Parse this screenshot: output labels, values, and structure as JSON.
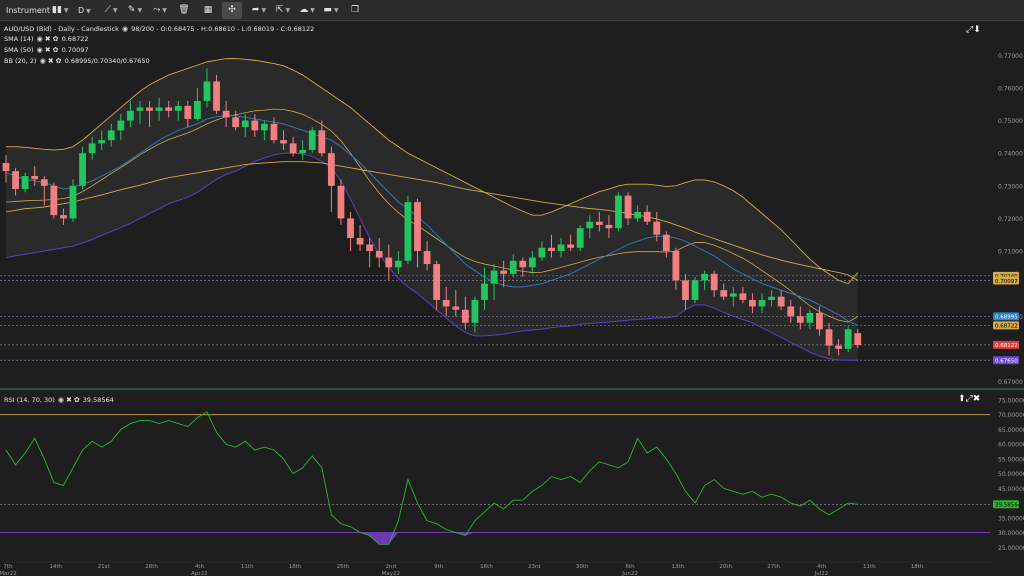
{
  "toolbar": {
    "instrument_label": "Instrument",
    "timeframe_label": "D",
    "icons": [
      "candles-icon",
      "crosshair-icon",
      "draw-line-icon",
      "pencil-icon",
      "trend-icon",
      "delete-icon",
      "layout-icon",
      "fullscreen-icon",
      "share-icon",
      "theme-icon",
      "flag-icon",
      "screenshot-icon"
    ]
  },
  "main_legend": {
    "title": "AUD/USD (Bid) - Daily - Candlestick",
    "ohlc": "98/200 - O:0.68475 - H:0.68610 - L:0.68019 - C:0.68122",
    "sma14": "SMA (14)",
    "sma14_value": "0.68722",
    "sma50": "SMA (50)",
    "sma50_value": "0.70097",
    "bb": "BB (20, 2)",
    "bb_value": "0.68995/0.70340/0.67650"
  },
  "rsi_legend": {
    "title": "RSI (14, 70, 30)",
    "value": "39.58564"
  },
  "colors": {
    "bg": "#1e1e1e",
    "up": "#22c55e",
    "down": "#f08080",
    "sma14": "#2e7fc7",
    "sma50": "#d4a94a",
    "bb_outer": "#d4a94a",
    "bb_lower": "#5b3fc9",
    "rsi": "#2db52d",
    "rsi_level": "#d4a94a",
    "rsi_fill": "#7b3fd1"
  },
  "chart_data": {
    "type": "candlestick",
    "title": "AUD/USD (Bid) - Daily - Candlestick",
    "price_ylim": [
      0.668,
      0.779
    ],
    "price_ticks": [
      "0.77000",
      "0.76000",
      "0.75000",
      "0.74000",
      "0.73000",
      "0.72000",
      "0.71000",
      "0.69000",
      "0.67000"
    ],
    "price_tick_values": [
      0.77,
      0.76,
      0.75,
      0.74,
      0.73,
      0.72,
      0.71,
      0.69,
      0.67
    ],
    "x_ticks": [
      {
        "label": "7th",
        "sub": "Mar22",
        "i": 0
      },
      {
        "label": "14th",
        "sub": "",
        "i": 5
      },
      {
        "label": "21st",
        "sub": "",
        "i": 10
      },
      {
        "label": "28th",
        "sub": "",
        "i": 15
      },
      {
        "label": "4th",
        "sub": "Apr22",
        "i": 20
      },
      {
        "label": "11th",
        "sub": "",
        "i": 25
      },
      {
        "label": "18th",
        "sub": "",
        "i": 30
      },
      {
        "label": "25th",
        "sub": "",
        "i": 35
      },
      {
        "label": "2nd",
        "sub": "May22",
        "i": 40
      },
      {
        "label": "9th",
        "sub": "",
        "i": 45
      },
      {
        "label": "16th",
        "sub": "",
        "i": 50
      },
      {
        "label": "23rd",
        "sub": "",
        "i": 55
      },
      {
        "label": "30th",
        "sub": "",
        "i": 60
      },
      {
        "label": "6th",
        "sub": "Jun22",
        "i": 65
      },
      {
        "label": "13th",
        "sub": "",
        "i": 70
      },
      {
        "label": "20th",
        "sub": "",
        "i": 75
      },
      {
        "label": "27th",
        "sub": "",
        "i": 80
      },
      {
        "label": "4th",
        "sub": "Jul22",
        "i": 85
      },
      {
        "label": "11th",
        "sub": "",
        "i": 90
      },
      {
        "label": "18th",
        "sub": "",
        "i": 95
      }
    ],
    "candles": [
      [
        0.737,
        0.7395,
        0.731,
        0.7345
      ],
      [
        0.7345,
        0.7355,
        0.727,
        0.729
      ],
      [
        0.729,
        0.734,
        0.728,
        0.733
      ],
      [
        0.733,
        0.736,
        0.73,
        0.732
      ],
      [
        0.732,
        0.733,
        0.724,
        0.73
      ],
      [
        0.73,
        0.731,
        0.72,
        0.721
      ],
      [
        0.721,
        0.723,
        0.718,
        0.72
      ],
      [
        0.72,
        0.732,
        0.719,
        0.73
      ],
      [
        0.73,
        0.742,
        0.729,
        0.74
      ],
      [
        0.74,
        0.745,
        0.738,
        0.743
      ],
      [
        0.743,
        0.747,
        0.741,
        0.744
      ],
      [
        0.744,
        0.749,
        0.742,
        0.747
      ],
      [
        0.747,
        0.752,
        0.744,
        0.75
      ],
      [
        0.75,
        0.756,
        0.748,
        0.753
      ],
      [
        0.753,
        0.756,
        0.749,
        0.754
      ],
      [
        0.754,
        0.756,
        0.748,
        0.753
      ],
      [
        0.753,
        0.757,
        0.75,
        0.754
      ],
      [
        0.754,
        0.756,
        0.751,
        0.753
      ],
      [
        0.753,
        0.756,
        0.75,
        0.7545
      ],
      [
        0.7545,
        0.756,
        0.748,
        0.7505
      ],
      [
        0.7505,
        0.76,
        0.75,
        0.756
      ],
      [
        0.756,
        0.766,
        0.754,
        0.762
      ],
      [
        0.762,
        0.764,
        0.752,
        0.753
      ],
      [
        0.753,
        0.756,
        0.748,
        0.751
      ],
      [
        0.751,
        0.753,
        0.747,
        0.748
      ],
      [
        0.748,
        0.752,
        0.745,
        0.75
      ],
      [
        0.75,
        0.752,
        0.745,
        0.747
      ],
      [
        0.747,
        0.75,
        0.744,
        0.749
      ],
      [
        0.749,
        0.751,
        0.743,
        0.744
      ],
      [
        0.744,
        0.747,
        0.741,
        0.743
      ],
      [
        0.743,
        0.745,
        0.739,
        0.74
      ],
      [
        0.74,
        0.744,
        0.738,
        0.741
      ],
      [
        0.741,
        0.748,
        0.74,
        0.747
      ],
      [
        0.747,
        0.75,
        0.739,
        0.74
      ],
      [
        0.74,
        0.742,
        0.722,
        0.73
      ],
      [
        0.73,
        0.732,
        0.718,
        0.72
      ],
      [
        0.72,
        0.722,
        0.71,
        0.714
      ],
      [
        0.714,
        0.718,
        0.71,
        0.712
      ],
      [
        0.712,
        0.714,
        0.705,
        0.71
      ],
      [
        0.71,
        0.714,
        0.705,
        0.708
      ],
      [
        0.708,
        0.712,
        0.701,
        0.705
      ],
      [
        0.705,
        0.71,
        0.703,
        0.707
      ],
      [
        0.707,
        0.727,
        0.706,
        0.725
      ],
      [
        0.725,
        0.726,
        0.705,
        0.71
      ],
      [
        0.71,
        0.713,
        0.704,
        0.706
      ],
      [
        0.706,
        0.707,
        0.692,
        0.695
      ],
      [
        0.695,
        0.699,
        0.69,
        0.693
      ],
      [
        0.693,
        0.698,
        0.69,
        0.692
      ],
      [
        0.692,
        0.696,
        0.686,
        0.688
      ],
      [
        0.688,
        0.696,
        0.685,
        0.695
      ],
      [
        0.695,
        0.705,
        0.692,
        0.7
      ],
      [
        0.7,
        0.706,
        0.695,
        0.704
      ],
      [
        0.704,
        0.707,
        0.699,
        0.703
      ],
      [
        0.703,
        0.709,
        0.702,
        0.707
      ],
      [
        0.707,
        0.708,
        0.702,
        0.705
      ],
      [
        0.705,
        0.71,
        0.703,
        0.708
      ],
      [
        0.708,
        0.713,
        0.707,
        0.711
      ],
      [
        0.711,
        0.715,
        0.708,
        0.71
      ],
      [
        0.71,
        0.714,
        0.708,
        0.712
      ],
      [
        0.712,
        0.715,
        0.71,
        0.711
      ],
      [
        0.711,
        0.718,
        0.71,
        0.717
      ],
      [
        0.717,
        0.721,
        0.714,
        0.719
      ],
      [
        0.719,
        0.722,
        0.716,
        0.718
      ],
      [
        0.718,
        0.721,
        0.714,
        0.717
      ],
      [
        0.717,
        0.728,
        0.716,
        0.727
      ],
      [
        0.727,
        0.728,
        0.718,
        0.72
      ],
      [
        0.72,
        0.724,
        0.719,
        0.722
      ],
      [
        0.722,
        0.724,
        0.718,
        0.719
      ],
      [
        0.719,
        0.722,
        0.713,
        0.715
      ],
      [
        0.715,
        0.716,
        0.708,
        0.71
      ],
      [
        0.71,
        0.711,
        0.698,
        0.701
      ],
      [
        0.701,
        0.703,
        0.692,
        0.695
      ],
      [
        0.695,
        0.702,
        0.694,
        0.701
      ],
      [
        0.701,
        0.704,
        0.698,
        0.703
      ],
      [
        0.703,
        0.704,
        0.696,
        0.698
      ],
      [
        0.698,
        0.7,
        0.695,
        0.696
      ],
      [
        0.696,
        0.699,
        0.693,
        0.697
      ],
      [
        0.697,
        0.699,
        0.694,
        0.695
      ],
      [
        0.695,
        0.697,
        0.691,
        0.693
      ],
      [
        0.693,
        0.697,
        0.691,
        0.695
      ],
      [
        0.695,
        0.698,
        0.693,
        0.696
      ],
      [
        0.696,
        0.698,
        0.692,
        0.693
      ],
      [
        0.693,
        0.695,
        0.688,
        0.69
      ],
      [
        0.69,
        0.693,
        0.686,
        0.688
      ],
      [
        0.688,
        0.692,
        0.686,
        0.691
      ],
      [
        0.691,
        0.693,
        0.684,
        0.686
      ],
      [
        0.686,
        0.688,
        0.678,
        0.681
      ],
      [
        0.681,
        0.683,
        0.678,
        0.68
      ],
      [
        0.68,
        0.687,
        0.679,
        0.686
      ],
      [
        0.6848,
        0.6861,
        0.6802,
        0.6812
      ]
    ],
    "sma14": [
      0.734,
      0.733,
      0.732,
      0.7315,
      0.731,
      0.73,
      0.729,
      0.7295,
      0.7305,
      0.7315,
      0.733,
      0.7345,
      0.736,
      0.738,
      0.74,
      0.742,
      0.744,
      0.7455,
      0.747,
      0.748,
      0.749,
      0.7505,
      0.7512,
      0.7515,
      0.7515,
      0.751,
      0.7505,
      0.75,
      0.7495,
      0.749,
      0.748,
      0.747,
      0.746,
      0.745,
      0.744,
      0.742,
      0.7395,
      0.737,
      0.734,
      0.731,
      0.728,
      0.725,
      0.723,
      0.7205,
      0.718,
      0.715,
      0.712,
      0.709,
      0.706,
      0.704,
      0.702,
      0.7005,
      0.6995,
      0.699,
      0.699,
      0.6995,
      0.7,
      0.701,
      0.702,
      0.703,
      0.7045,
      0.706,
      0.7075,
      0.709,
      0.7105,
      0.712,
      0.713,
      0.714,
      0.7145,
      0.7145,
      0.714,
      0.713,
      0.7115,
      0.71,
      0.7085,
      0.7065,
      0.7045,
      0.703,
      0.7015,
      0.7,
      0.699,
      0.698,
      0.697,
      0.696,
      0.695,
      0.6935,
      0.692,
      0.6905,
      0.6885,
      0.6872
    ],
    "sma50": [
      0.722,
      0.7225,
      0.723,
      0.7232,
      0.7235,
      0.724,
      0.7245,
      0.725,
      0.7258,
      0.7265,
      0.7272,
      0.728,
      0.7288,
      0.7295,
      0.7302,
      0.731,
      0.7318,
      0.7325,
      0.733,
      0.7335,
      0.734,
      0.7345,
      0.735,
      0.7355,
      0.736,
      0.7365,
      0.7368,
      0.737,
      0.7372,
      0.7374,
      0.7374,
      0.7374,
      0.7372,
      0.737,
      0.7365,
      0.736,
      0.7355,
      0.735,
      0.7345,
      0.734,
      0.7335,
      0.733,
      0.7325,
      0.732,
      0.7315,
      0.731,
      0.7303,
      0.7296,
      0.729,
      0.7285,
      0.728,
      0.7275,
      0.727,
      0.7265,
      0.726,
      0.7255,
      0.725,
      0.7246,
      0.7242,
      0.7238,
      0.7234,
      0.723,
      0.7228,
      0.7224,
      0.722,
      0.7215,
      0.721,
      0.7205,
      0.7198,
      0.719,
      0.718,
      0.717,
      0.7158,
      0.7148,
      0.7138,
      0.7128,
      0.7118,
      0.7108,
      0.7098,
      0.7088,
      0.708,
      0.7072,
      0.7065,
      0.7058,
      0.7052,
      0.7046,
      0.704,
      0.7034,
      0.7027,
      0.701
    ],
    "bb_upper": [
      0.742,
      0.742,
      0.7418,
      0.7415,
      0.7412,
      0.741,
      0.7412,
      0.742,
      0.744,
      0.7465,
      0.749,
      0.7515,
      0.754,
      0.7565,
      0.759,
      0.761,
      0.7625,
      0.764,
      0.765,
      0.766,
      0.767,
      0.768,
      0.7685,
      0.769,
      0.769,
      0.7688,
      0.7685,
      0.768,
      0.7675,
      0.7668,
      0.7655,
      0.764,
      0.762,
      0.76,
      0.758,
      0.756,
      0.754,
      0.7515,
      0.749,
      0.7465,
      0.744,
      0.742,
      0.74,
      0.7385,
      0.737,
      0.7355,
      0.734,
      0.7325,
      0.731,
      0.7295,
      0.728,
      0.7265,
      0.725,
      0.7235,
      0.7222,
      0.721,
      0.721,
      0.722,
      0.7232,
      0.7245,
      0.7258,
      0.727,
      0.7282,
      0.729,
      0.73,
      0.7305,
      0.7305,
      0.7305,
      0.7302,
      0.7298,
      0.73,
      0.731,
      0.7318,
      0.7318,
      0.7312,
      0.73,
      0.7285,
      0.7265,
      0.724,
      0.7215,
      0.719,
      0.7165,
      0.7135,
      0.7105,
      0.7075,
      0.705,
      0.703,
      0.701,
      0.7,
      0.7034
    ],
    "bb_lower": [
      0.708,
      0.7085,
      0.709,
      0.7095,
      0.71,
      0.7105,
      0.711,
      0.7115,
      0.7125,
      0.7135,
      0.7148,
      0.716,
      0.7172,
      0.7185,
      0.72,
      0.7215,
      0.723,
      0.7245,
      0.7255,
      0.7265,
      0.728,
      0.73,
      0.732,
      0.7335,
      0.7345,
      0.736,
      0.7375,
      0.7385,
      0.7395,
      0.74,
      0.74,
      0.7398,
      0.739,
      0.7375,
      0.7355,
      0.7315,
      0.726,
      0.72,
      0.714,
      0.709,
      0.705,
      0.7015,
      0.699,
      0.697,
      0.6945,
      0.692,
      0.6895,
      0.687,
      0.685,
      0.684,
      0.684,
      0.6842,
      0.6845,
      0.685,
      0.6855,
      0.6858,
      0.686,
      0.6865,
      0.6868,
      0.687,
      0.6875,
      0.6878,
      0.688,
      0.6882,
      0.6885,
      0.6888,
      0.689,
      0.6892,
      0.6895,
      0.6895,
      0.69,
      0.692,
      0.6935,
      0.6935,
      0.6925,
      0.6912,
      0.69,
      0.689,
      0.688,
      0.6865,
      0.685,
      0.6835,
      0.682,
      0.6805,
      0.679,
      0.6778,
      0.677,
      0.6766,
      0.6765,
      0.6765
    ],
    "bb_middle": [
      0.725,
      0.7252,
      0.7254,
      0.7255,
      0.7256,
      0.7258,
      0.7261,
      0.7268,
      0.7282,
      0.73,
      0.7319,
      0.7338,
      0.7356,
      0.7375,
      0.7395,
      0.7412,
      0.7428,
      0.7442,
      0.7452,
      0.7462,
      0.7475,
      0.749,
      0.7502,
      0.7512,
      0.7518,
      0.7524,
      0.753,
      0.7532,
      0.7535,
      0.7534,
      0.7528,
      0.7519,
      0.7505,
      0.7488,
      0.7468,
      0.7438,
      0.74,
      0.7358,
      0.7315,
      0.7278,
      0.7245,
      0.7218,
      0.7195,
      0.7178,
      0.7158,
      0.7138,
      0.7118,
      0.7098,
      0.708,
      0.7068,
      0.706,
      0.7054,
      0.7048,
      0.7042,
      0.7038,
      0.7034,
      0.7035,
      0.7042,
      0.705,
      0.7058,
      0.7066,
      0.7074,
      0.7081,
      0.7086,
      0.7092,
      0.7096,
      0.7098,
      0.7098,
      0.7098,
      0.7097,
      0.71,
      0.7115,
      0.7126,
      0.7126,
      0.7118,
      0.7106,
      0.7092,
      0.7078,
      0.706,
      0.704,
      0.702,
      0.7,
      0.6978,
      0.6955,
      0.6932,
      0.6914,
      0.69,
      0.6888,
      0.6882,
      0.6899
    ],
    "price_markers": [
      {
        "value": 0.7024,
        "label": "0.70240",
        "color": "#d4a94a",
        "text": "#000"
      },
      {
        "value": 0.70097,
        "label": "0.70097",
        "color": "#d4a94a",
        "text": "#000"
      },
      {
        "value": 0.68995,
        "label": "0.68995",
        "color": "#2e7fc7",
        "text": "#fff"
      },
      {
        "value": 0.68722,
        "label": "0.68722",
        "color": "#d4a94a",
        "text": "#000"
      },
      {
        "value": 0.68122,
        "label": "0.68122",
        "color": "#e03c3c",
        "text": "#fff"
      },
      {
        "value": 0.6765,
        "label": "0.67650",
        "color": "#6a45d8",
        "text": "#fff"
      }
    ],
    "rsi": {
      "ylim": [
        20,
        75
      ],
      "ticks": [
        "75.00000",
        "70.00000",
        "65.00000",
        "60.00000",
        "55.00000",
        "50.00000",
        "45.00000",
        "35.00000",
        "30.00000",
        "25.00000"
      ],
      "tick_values": [
        75,
        70,
        65,
        60,
        55,
        50,
        45,
        35,
        30,
        25
      ],
      "overbought": 70,
      "oversold": 30,
      "marker": {
        "value": 39.58564,
        "label": "39.58564"
      },
      "values": [
        58,
        53,
        57,
        62,
        55,
        47,
        46,
        52,
        58,
        61,
        59,
        61,
        65,
        67,
        68,
        68,
        67,
        68,
        67,
        66,
        69,
        71,
        64,
        60,
        59,
        61,
        58,
        59,
        58,
        55,
        50,
        52,
        56,
        52,
        36,
        33,
        32,
        30,
        29,
        26,
        26,
        34,
        48,
        40,
        34,
        33,
        31,
        30,
        29,
        34,
        37,
        40,
        38,
        41,
        41,
        44,
        46,
        49,
        48,
        49,
        47,
        51,
        54,
        53,
        52,
        54,
        62,
        57,
        59,
        55,
        50,
        44,
        40,
        46,
        48,
        45,
        44,
        43,
        44,
        42,
        43,
        42,
        40,
        39,
        41,
        38,
        36,
        38,
        40,
        39.6
      ]
    }
  }
}
